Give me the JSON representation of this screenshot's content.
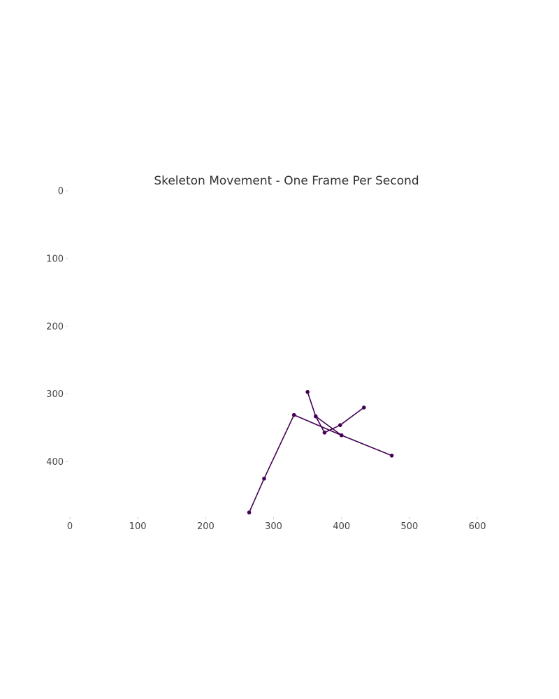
{
  "chart_data": {
    "type": "line",
    "title": "Skeleton Movement - One Frame Per Second",
    "xlabel": "",
    "ylabel": "",
    "xlim": [
      0,
      640
    ],
    "ylim": [
      480,
      0
    ],
    "y_inverted": true,
    "grid": false,
    "x_ticks": [
      0,
      100,
      200,
      300,
      400,
      500,
      600
    ],
    "y_ticks": [
      0,
      100,
      200,
      300,
      400
    ],
    "line_color": "#440154",
    "points": [
      {
        "x": 350,
        "y": 297
      },
      {
        "x": 362,
        "y": 333
      },
      {
        "x": 375,
        "y": 357
      },
      {
        "x": 398,
        "y": 346
      },
      {
        "x": 433,
        "y": 320
      },
      {
        "x": 330,
        "y": 331
      },
      {
        "x": 400,
        "y": 361
      },
      {
        "x": 474,
        "y": 391
      },
      {
        "x": 286,
        "y": 425
      },
      {
        "x": 264,
        "y": 475
      }
    ],
    "segments": [
      [
        0,
        1
      ],
      [
        1,
        2
      ],
      [
        2,
        3
      ],
      [
        3,
        4
      ],
      [
        1,
        6
      ],
      [
        5,
        6
      ],
      [
        6,
        7
      ],
      [
        5,
        8
      ],
      [
        8,
        9
      ]
    ]
  }
}
